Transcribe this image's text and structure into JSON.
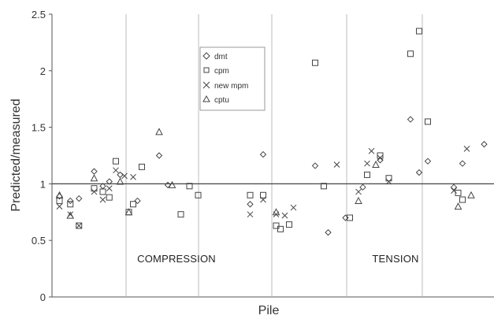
{
  "chart_data": {
    "type": "scatter",
    "xlabel": "Pile",
    "ylabel": "Predicted/measured",
    "ylim": [
      0,
      2.5
    ],
    "yticks": [
      "0",
      "0.5",
      "1",
      "1.5",
      "2",
      "2.5"
    ],
    "xlim": [
      0,
      100
    ],
    "grid": "vertical lines only",
    "reference_line": 1,
    "legend_position": "upper-center",
    "annotations": [
      "COMPRESSION",
      "TENSION"
    ],
    "series": [
      {
        "name": "dmt",
        "marker": "diamond",
        "points": [
          [
            1,
            0.89
          ],
          [
            3.5,
            0.85
          ],
          [
            5.5,
            0.87
          ],
          [
            9,
            1.11
          ],
          [
            11,
            0.98
          ],
          [
            12.5,
            1.02
          ],
          [
            15,
            1.08
          ],
          [
            19,
            0.85
          ],
          [
            24,
            1.25
          ],
          [
            26,
            0.99
          ],
          [
            45,
            0.82
          ],
          [
            48,
            1.26
          ],
          [
            60,
            1.16
          ],
          [
            63,
            0.57
          ],
          [
            67,
            0.7
          ],
          [
            71,
            0.97
          ],
          [
            75,
            1.21
          ],
          [
            82,
            1.57
          ],
          [
            84,
            1.1
          ],
          [
            86,
            1.2
          ],
          [
            92,
            0.97
          ],
          [
            94,
            1.18
          ],
          [
            99,
            1.35
          ]
        ]
      },
      {
        "name": "cpm",
        "marker": "square",
        "points": [
          [
            1,
            0.85
          ],
          [
            3.5,
            0.82
          ],
          [
            5.5,
            0.63
          ],
          [
            9,
            0.96
          ],
          [
            11,
            0.93
          ],
          [
            12.5,
            0.88
          ],
          [
            14,
            1.2
          ],
          [
            17,
            0.75
          ],
          [
            18,
            0.82
          ],
          [
            20,
            1.15
          ],
          [
            29,
            0.73
          ],
          [
            31,
            0.98
          ],
          [
            33,
            0.9
          ],
          [
            45,
            0.9
          ],
          [
            48,
            0.9
          ],
          [
            51,
            0.63
          ],
          [
            52,
            0.6
          ],
          [
            54,
            0.64
          ],
          [
            60,
            2.07
          ],
          [
            62,
            0.98
          ],
          [
            68,
            0.7
          ],
          [
            72,
            1.08
          ],
          [
            75,
            1.25
          ],
          [
            77,
            1.05
          ],
          [
            82,
            2.15
          ],
          [
            84,
            2.35
          ],
          [
            86,
            1.55
          ],
          [
            93,
            0.92
          ],
          [
            94,
            0.86
          ]
        ]
      },
      {
        "name": "new mpm",
        "marker": "x",
        "points": [
          [
            1,
            0.8
          ],
          [
            3.5,
            0.73
          ],
          [
            5.5,
            0.63
          ],
          [
            9,
            0.93
          ],
          [
            11,
            0.86
          ],
          [
            12.5,
            0.96
          ],
          [
            14,
            1.12
          ],
          [
            16,
            1.07
          ],
          [
            18,
            1.06
          ],
          [
            45,
            0.73
          ],
          [
            48,
            0.86
          ],
          [
            51,
            0.73
          ],
          [
            53,
            0.72
          ],
          [
            55,
            0.79
          ],
          [
            65,
            1.17
          ],
          [
            70,
            0.93
          ],
          [
            72,
            1.18
          ],
          [
            73,
            1.29
          ],
          [
            75,
            1.23
          ],
          [
            77,
            1.02
          ],
          [
            92,
            0.94
          ],
          [
            95,
            1.31
          ]
        ]
      },
      {
        "name": "cptu",
        "marker": "triangle",
        "points": [
          [
            1,
            0.9
          ],
          [
            3.5,
            0.72
          ],
          [
            9,
            1.05
          ],
          [
            15,
            1.02
          ],
          [
            17,
            0.75
          ],
          [
            24,
            1.46
          ],
          [
            27,
            0.99
          ],
          [
            51,
            0.75
          ],
          [
            70,
            0.85
          ],
          [
            74,
            1.17
          ],
          [
            93,
            0.8
          ],
          [
            96,
            0.9
          ]
        ]
      }
    ]
  }
}
